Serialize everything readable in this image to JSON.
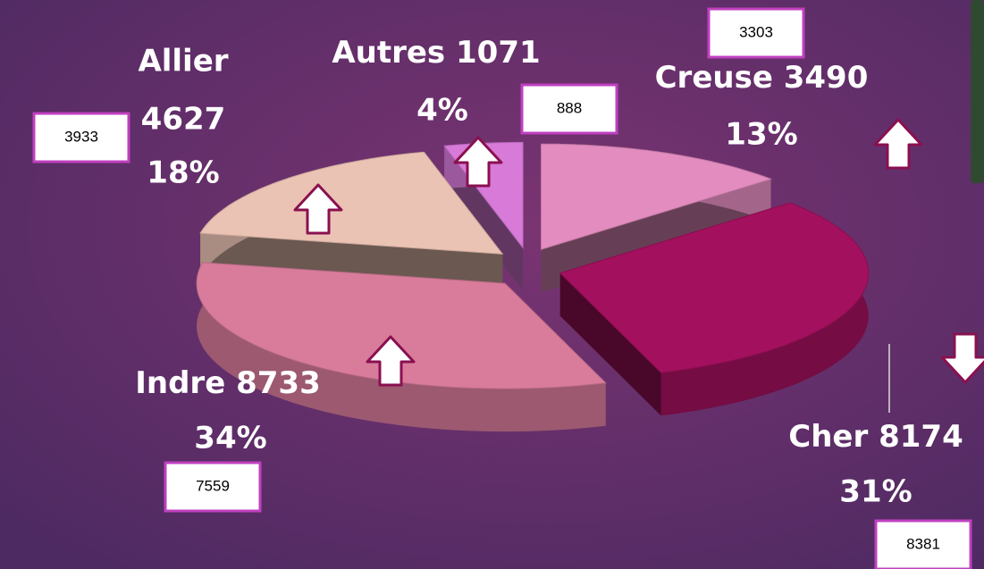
{
  "chart_data": {
    "type": "pie",
    "categories": [
      "Creuse",
      "Cher",
      "Indre",
      "Allier",
      "Autres"
    ],
    "values": [
      3490,
      8174,
      8733,
      4627,
      1071
    ],
    "percents": [
      13,
      31,
      34,
      18,
      4
    ],
    "percent_labels": [
      "13%",
      "31%",
      "34%",
      "18%",
      "4%"
    ],
    "previous": [
      3303,
      8381,
      7559,
      3933,
      888
    ],
    "trend": [
      "up",
      "down",
      "up",
      "up",
      "up"
    ],
    "colors": [
      "#e38cbf",
      "#a2105e",
      "#d97c9b",
      "#ebc3b4",
      "#d77ad8"
    ]
  }
}
